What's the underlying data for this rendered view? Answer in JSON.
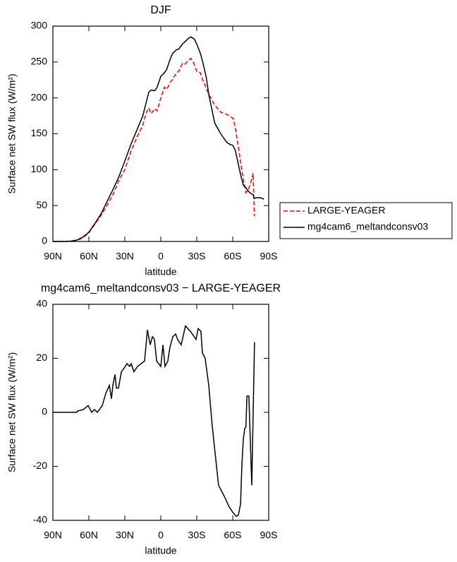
{
  "chart_data": [
    {
      "type": "line",
      "title": "DJF",
      "xlabel": "latitude",
      "ylabel": "Surface net SW flux (W/m²)",
      "xlim": [
        90,
        -90
      ],
      "ylim": [
        0,
        300
      ],
      "xticks": [
        {
          "value": 90,
          "label": "90N"
        },
        {
          "value": 60,
          "label": "60N"
        },
        {
          "value": 30,
          "label": "30N"
        },
        0,
        {
          "value": -30,
          "label": "30S"
        },
        {
          "value": -60,
          "label": "60S"
        },
        {
          "value": -90,
          "label": "90S"
        }
      ],
      "yticks": [
        0,
        50,
        100,
        150,
        200,
        250,
        300
      ],
      "legend": "right",
      "series": [
        {
          "name": "LARGE-YEAGER",
          "color": "#ff0000",
          "line_style": "dashed",
          "x": [
            90,
            85,
            80,
            75,
            70,
            65,
            60,
            55,
            50,
            45,
            40,
            35,
            30,
            25,
            20,
            15,
            12,
            10,
            8,
            5,
            3,
            0,
            -3,
            -5,
            -8,
            -10,
            -13,
            -15,
            -18,
            -20,
            -23,
            -25,
            -27,
            -30,
            -33,
            -35,
            -40,
            -45,
            -50,
            -55,
            -58,
            -60,
            -62,
            -65,
            -67,
            -69,
            -71,
            -73,
            -75,
            -77,
            -78
          ],
          "values": [
            0,
            0,
            0,
            0.5,
            1.5,
            5,
            12,
            24,
            36,
            50,
            65,
            85,
            100,
            125,
            145,
            162,
            180,
            186,
            178,
            185,
            182,
            200,
            215,
            212,
            222,
            226,
            235,
            237,
            248,
            247,
            252,
            255,
            250,
            237,
            235,
            225,
            205,
            190,
            180,
            177,
            174,
            172,
            160,
            128,
            105,
            85,
            68,
            72,
            82,
            95,
            35
          ]
        },
        {
          "name": "mg4cam6_meltandconsv03",
          "color": "#000000",
          "line_style": "solid",
          "x": [
            90,
            85,
            80,
            75,
            70,
            65,
            60,
            55,
            50,
            45,
            40,
            35,
            30,
            25,
            20,
            15,
            12,
            10,
            8,
            5,
            3,
            0,
            -3,
            -5,
            -8,
            -10,
            -13,
            -15,
            -18,
            -20,
            -23,
            -25,
            -28,
            -30,
            -33,
            -35,
            -38,
            -40,
            -45,
            -50,
            -55,
            -58,
            -60,
            -62,
            -65,
            -67,
            -69,
            -71,
            -73,
            -75,
            -77,
            -78,
            -80,
            -83,
            -86
          ],
          "values": [
            0,
            0,
            0,
            0.5,
            2,
            6,
            13,
            25,
            38,
            55,
            72,
            90,
            112,
            135,
            155,
            175,
            195,
            208,
            211,
            210,
            215,
            230,
            235,
            240,
            255,
            262,
            267,
            268,
            275,
            278,
            283,
            285,
            282,
            275,
            262,
            250,
            228,
            205,
            165,
            150,
            138,
            135,
            134,
            128,
            105,
            90,
            78,
            75,
            70,
            67,
            65,
            60,
            61,
            61,
            59
          ]
        }
      ]
    },
    {
      "type": "line",
      "title": "mg4cam6_meltandconsv03 − LARGE-YEAGER",
      "xlabel": "latitude",
      "ylabel": "Surface net SW flux (W/m²)",
      "xlim": [
        90,
        -90
      ],
      "ylim": [
        -40,
        40
      ],
      "xticks": [
        {
          "value": 90,
          "label": "90N"
        },
        {
          "value": 60,
          "label": "60N"
        },
        {
          "value": 30,
          "label": "30N"
        },
        0,
        {
          "value": -30,
          "label": "30S"
        },
        {
          "value": -60,
          "label": "60S"
        },
        {
          "value": -90,
          "label": "90S"
        }
      ],
      "yticks": [
        -40,
        -20,
        0,
        20,
        40
      ],
      "series": [
        {
          "color": "#000000",
          "line_style": "solid",
          "x": [
            90,
            80,
            70,
            69.4,
            64.7,
            60.6,
            57.6,
            55.3,
            52.9,
            48.8,
            45.9,
            42.9,
            41.2,
            40,
            38.2,
            37,
            35.3,
            32.9,
            31.2,
            28.2,
            25.9,
            24.7,
            22.4,
            19.4,
            13.5,
            11.2,
            8.8,
            7,
            5.3,
            3.5,
            0,
            -1.8,
            -3.5,
            -5.9,
            -7.6,
            -10,
            -12.4,
            -14,
            -17,
            -20.6,
            -24.7,
            -29.4,
            -31.2,
            -33.5,
            -34.7,
            -37,
            -40,
            -42.9,
            -45.3,
            -48.2,
            -52.9,
            -57,
            -60,
            -62.9,
            -64.7,
            -66.5,
            -67.6,
            -68.8,
            -70,
            -71,
            -71.8,
            -73.5,
            -75.9,
            -78.2
          ],
          "values": [
            0,
            0,
            0,
            0.5,
            1,
            2.5,
            0,
            1,
            0,
            2.5,
            7,
            10,
            5,
            10,
            14,
            9,
            9,
            15,
            16,
            18,
            17,
            18,
            15,
            17,
            19,
            30.5,
            25,
            28,
            27,
            19,
            17,
            25,
            17,
            19,
            24,
            28,
            29,
            27,
            25,
            32,
            30,
            27,
            31,
            30,
            22,
            20,
            10,
            -5,
            -15,
            -27,
            -31,
            -35,
            -37,
            -38.5,
            -38,
            -34,
            -20,
            -10,
            -6,
            -5.5,
            6,
            6,
            -27,
            26
          ]
        }
      ]
    }
  ]
}
